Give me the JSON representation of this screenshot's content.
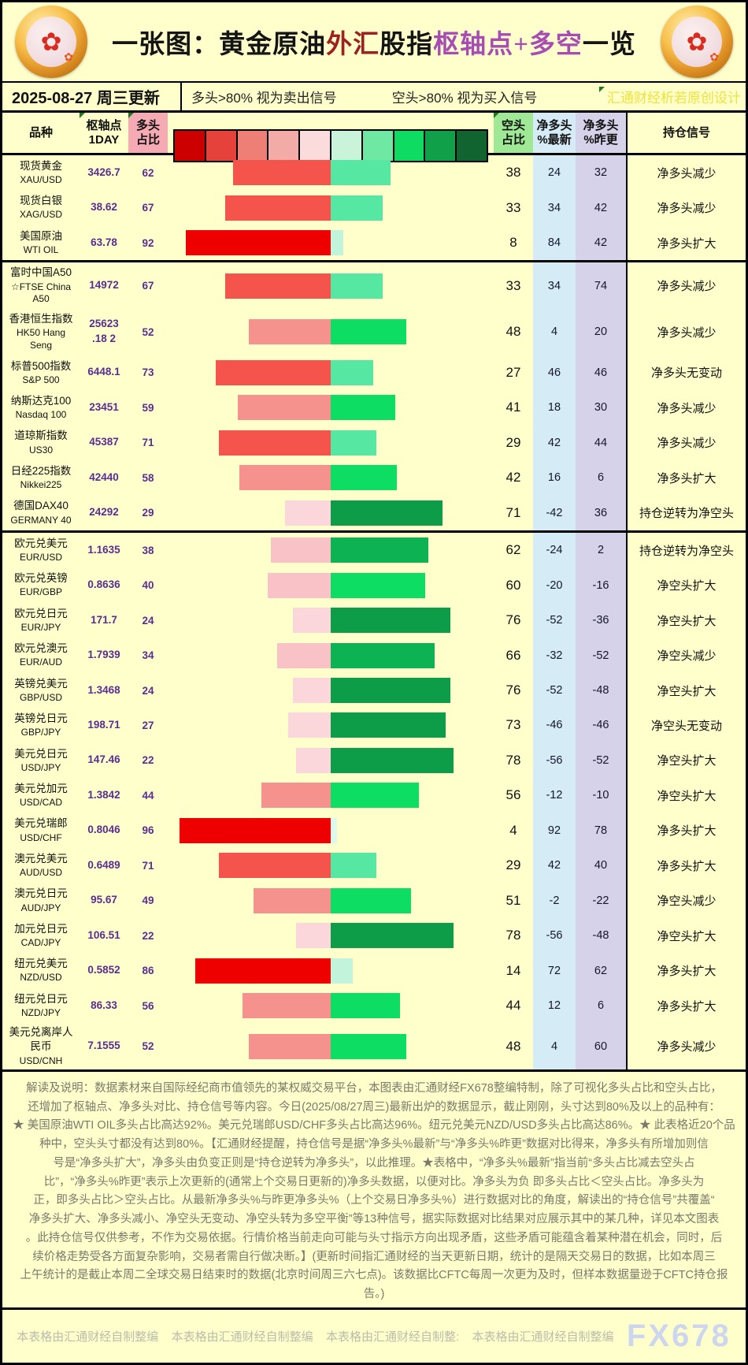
{
  "title": {
    "segments": [
      {
        "text": "一张图：黄金原油",
        "color": "#141414"
      },
      {
        "text": "外汇",
        "color": "#9e2121"
      },
      {
        "text": "股指",
        "color": "#141414"
      },
      {
        "text": "枢轴点+多空",
        "color": "#a64cb3"
      },
      {
        "text": "一览",
        "color": "#141414"
      }
    ]
  },
  "subheader": {
    "date": "2025-08-27 周三更新",
    "legend_long": "多头>80% 视为卖出信号",
    "legend_short": "空头>80% 视为买入信号",
    "watermark": "汇通财经析若原创设计"
  },
  "table": {
    "headers": {
      "symbol": "品种",
      "pivot": "枢轴点\n1DAY",
      "long": "多头\n占比",
      "short": "空头\n占比",
      "net_new": "净多头\n%最新",
      "net_prev": "净多头\n%昨更",
      "signal": "持仓信号"
    },
    "scale_colors": [
      "#cc0000",
      "#e4423a",
      "#ee7f77",
      "#f2aba6",
      "#fbdbdb",
      "#c9f4d9",
      "#6fe8a4",
      "#0edb62",
      "#10a04a",
      "#11632f"
    ],
    "red_levels": [
      [
        85,
        "#ee0000"
      ],
      [
        60,
        "#f4544c"
      ],
      [
        42,
        "#f5928e"
      ],
      [
        30,
        "#f8c2c6"
      ],
      [
        0,
        "#fbd6da"
      ]
    ],
    "green_levels": [
      [
        70,
        "#0d9d48"
      ],
      [
        61,
        "#0db353"
      ],
      [
        40,
        "#0edd63"
      ],
      [
        25,
        "#56e8a2"
      ],
      [
        6,
        "#c2f4dc"
      ],
      [
        0,
        "#dff8ec"
      ]
    ],
    "rows": [
      {
        "name": "现货黄金",
        "code": "XAU/USD",
        "pivot": "3426.7",
        "long": 62,
        "short": 38,
        "net_new": 24,
        "net_prev": 32,
        "signal": "净多头减少"
      },
      {
        "name": "现货白银",
        "code": "XAG/USD",
        "pivot": "38.62",
        "long": 67,
        "short": 33,
        "net_new": 34,
        "net_prev": 42,
        "signal": "净多头减少"
      },
      {
        "name": "美国原油",
        "code": "WTI OIL",
        "pivot": "63.78",
        "long": 92,
        "short": 8,
        "net_new": 84,
        "net_prev": 42,
        "signal": "净多头扩大"
      },
      {
        "name": "富时中国A50",
        "code": "☆FTSE China\nA50",
        "pivot": "14972",
        "long": 67,
        "short": 33,
        "net_new": 34,
        "net_prev": 74,
        "signal": "净多头减少",
        "group_start": true,
        "tall": true
      },
      {
        "name": "香港恒生指数",
        "code": "HK50 Hang\nSeng",
        "pivot": "25623\n.18 2",
        "long": 52,
        "short": 48,
        "net_new": 4,
        "net_prev": 20,
        "signal": "净多头减少",
        "tall": true
      },
      {
        "name": "标普500指数",
        "code": "S&P 500",
        "pivot": "6448.1",
        "long": 73,
        "short": 27,
        "net_new": 46,
        "net_prev": 46,
        "signal": "净多头无变动"
      },
      {
        "name": "纳斯达克100",
        "code": "Nasdaq 100",
        "pivot": "23451",
        "long": 59,
        "short": 41,
        "net_new": 18,
        "net_prev": 30,
        "signal": "净多头减少"
      },
      {
        "name": "道琼斯指数",
        "code": "US30",
        "pivot": "45387",
        "long": 71,
        "short": 29,
        "net_new": 42,
        "net_prev": 44,
        "signal": "净多头减少"
      },
      {
        "name": "日经225指数",
        "code": "Nikkei225",
        "pivot": "42440",
        "long": 58,
        "short": 42,
        "net_new": 16,
        "net_prev": 6,
        "signal": "净多头扩大"
      },
      {
        "name": "德国DAX40",
        "code": "GERMANY 40",
        "pivot": "24292",
        "long": 29,
        "short": 71,
        "net_new": -42,
        "net_prev": 36,
        "signal": "持仓逆转为净空头"
      },
      {
        "name": "欧元兑美元",
        "code": "EUR/USD",
        "pivot": "1.1635",
        "long": 38,
        "short": 62,
        "net_new": -24,
        "net_prev": 2,
        "signal": "持仓逆转为净空头",
        "group_start": true
      },
      {
        "name": "欧元兑英镑",
        "code": "EUR/GBP",
        "pivot": "0.8636",
        "long": 40,
        "short": 60,
        "net_new": -20,
        "net_prev": -16,
        "signal": "净空头扩大"
      },
      {
        "name": "欧元兑日元",
        "code": "EUR/JPY",
        "pivot": "171.7",
        "long": 24,
        "short": 76,
        "net_new": -52,
        "net_prev": -36,
        "signal": "净空头扩大"
      },
      {
        "name": "欧元兑澳元",
        "code": "EUR/AUD",
        "pivot": "1.7939",
        "long": 34,
        "short": 66,
        "net_new": -32,
        "net_prev": -52,
        "signal": "净空头减少"
      },
      {
        "name": "英镑兑美元",
        "code": "GBP/USD",
        "pivot": "1.3468",
        "long": 24,
        "short": 76,
        "net_new": -52,
        "net_prev": -48,
        "signal": "净空头扩大"
      },
      {
        "name": "英镑兑日元",
        "code": "GBP/JPY",
        "pivot": "198.71",
        "long": 27,
        "short": 73,
        "net_new": -46,
        "net_prev": -46,
        "signal": "净空头无变动"
      },
      {
        "name": "美元兑日元",
        "code": "USD/JPY",
        "pivot": "147.46",
        "long": 22,
        "short": 78,
        "net_new": -56,
        "net_prev": -52,
        "signal": "净空头扩大"
      },
      {
        "name": "美元兑加元",
        "code": "USD/CAD",
        "pivot": "1.3842",
        "long": 44,
        "short": 56,
        "net_new": -12,
        "net_prev": -10,
        "signal": "净空头扩大"
      },
      {
        "name": "美元兑瑞郎",
        "code": "USD/CHF",
        "pivot": "0.8046",
        "long": 96,
        "short": 4,
        "net_new": 92,
        "net_prev": 78,
        "signal": "净多头扩大"
      },
      {
        "name": "澳元兑美元",
        "code": "AUD/USD",
        "pivot": "0.6489",
        "long": 71,
        "short": 29,
        "net_new": 42,
        "net_prev": 40,
        "signal": "净多头扩大"
      },
      {
        "name": "澳元兑日元",
        "code": "AUD/JPY",
        "pivot": "95.67",
        "long": 49,
        "short": 51,
        "net_new": -2,
        "net_prev": -22,
        "signal": "净空头减少"
      },
      {
        "name": "加元兑日元",
        "code": "CAD/JPY",
        "pivot": "106.51",
        "long": 22,
        "short": 78,
        "net_new": -56,
        "net_prev": -48,
        "signal": "净空头扩大"
      },
      {
        "name": "纽元兑美元",
        "code": "NZD/USD",
        "pivot": "0.5852",
        "long": 86,
        "short": 14,
        "net_new": 72,
        "net_prev": 62,
        "signal": "净多头扩大"
      },
      {
        "name": "纽元兑日元",
        "code": "NZD/JPY",
        "pivot": "86.33",
        "long": 56,
        "short": 44,
        "net_new": 12,
        "net_prev": 6,
        "signal": "净多头扩大"
      },
      {
        "name": "美元兑离岸人\n民币",
        "code": "USD/CNH",
        "pivot": "7.1555",
        "long": 52,
        "short": 48,
        "net_new": 4,
        "net_prev": 60,
        "signal": "净多头减少",
        "tall": true
      }
    ]
  },
  "chart_data": {
    "type": "bar",
    "title": "一张图：黄金原油外汇股指枢轴点+多空一览",
    "subtitle": "2025-08-27 周三更新",
    "categories": [
      "XAU/USD",
      "XAG/USD",
      "WTI OIL",
      "FTSE China A50",
      "HK50 Hang Seng",
      "S&P 500",
      "Nasdaq 100",
      "US30",
      "Nikkei225",
      "GERMANY 40",
      "EUR/USD",
      "EUR/GBP",
      "EUR/JPY",
      "EUR/AUD",
      "GBP/USD",
      "GBP/JPY",
      "USD/JPY",
      "USD/CAD",
      "USD/CHF",
      "AUD/USD",
      "AUD/JPY",
      "CAD/JPY",
      "NZD/USD",
      "NZD/JPY",
      "USD/CNH"
    ],
    "series": [
      {
        "name": "多头占比",
        "values": [
          62,
          67,
          92,
          67,
          52,
          73,
          59,
          71,
          58,
          29,
          38,
          40,
          24,
          34,
          24,
          27,
          22,
          44,
          96,
          71,
          49,
          22,
          86,
          56,
          52
        ]
      },
      {
        "name": "空头占比",
        "values": [
          38,
          33,
          8,
          33,
          48,
          27,
          41,
          29,
          42,
          71,
          62,
          60,
          76,
          66,
          76,
          73,
          78,
          56,
          4,
          29,
          51,
          78,
          14,
          44,
          48
        ]
      },
      {
        "name": "净多头%最新",
        "values": [
          24,
          34,
          84,
          34,
          4,
          46,
          18,
          42,
          16,
          -42,
          -24,
          -20,
          -52,
          -32,
          -52,
          -46,
          -56,
          -12,
          92,
          42,
          -2,
          -56,
          72,
          12,
          4
        ]
      },
      {
        "name": "净多头%昨更",
        "values": [
          32,
          42,
          42,
          74,
          20,
          46,
          30,
          44,
          6,
          36,
          2,
          -16,
          -36,
          -52,
          -48,
          -46,
          -52,
          -10,
          78,
          40,
          -22,
          -48,
          62,
          6,
          60
        ]
      },
      {
        "name": "枢轴点1DAY",
        "values": [
          3426.7,
          38.62,
          63.78,
          14972,
          25623.182,
          6448.1,
          23451,
          45387,
          42440,
          24292,
          1.1635,
          0.8636,
          171.7,
          1.7939,
          1.3468,
          198.71,
          147.46,
          1.3842,
          0.8046,
          0.6489,
          95.67,
          106.51,
          0.5852,
          86.33,
          7.1555
        ]
      },
      {
        "name": "持仓信号",
        "values": [
          "净多头减少",
          "净多头减少",
          "净多头扩大",
          "净多头减少",
          "净多头减少",
          "净多头无变动",
          "净多头减少",
          "净多头减少",
          "净多头扩大",
          "持仓逆转为净空头",
          "持仓逆转为净空头",
          "净空头扩大",
          "净空头扩大",
          "净空头减少",
          "净空头扩大",
          "净空头无变动",
          "净空头扩大",
          "净空头扩大",
          "净多头扩大",
          "净多头扩大",
          "净空头减少",
          "净空头扩大",
          "净多头扩大",
          "净多头扩大",
          "净多头减少"
        ]
      }
    ],
    "xlim": [
      0,
      100
    ],
    "grid": false,
    "legend_position": "none"
  },
  "footer": {
    "lines": [
      "解读及说明：数据素材来自国际经纪商市值领先的某权威交易平台，本图表由汇通财经FX678整编特制，除了可视化多头占比和空头占比，",
      "还增加了枢轴点、净多头对比、持仓信号等内容。今日(2025/08/27周三)最新出炉的数据显示，截止刚刚，头寸达到80%及以上的品种有：",
      "★ 美国原油WTI OIL多头占比高达92%。美元兑瑞郎USD/CHF多头占比高达96%。纽元兑美元NZD/USD多头占比高达86%。★ 此表格近20个品",
      "种中，空头头寸都没有达到80%。【汇通财经提醒，持仓信号是据“净多头%最新”与“净多头%昨更”数据对比得来，净多头有所增加则信",
      "号是“净多头扩大”，净多头由负变正则是“持仓逆转为净多头”，以此推理。★表格中，“净多头%最新”指当前“多头占比减去空头占",
      "比”，“净多头%昨更”表示上次更新的(通常上个交易日更新的)净多头数据，以便对比。净多头为负 即多头占比＜空头占比。净多头为",
      "正，即多头占比＞空头占比。从最新净多头%与昨更净多头%（上个交易日净多头%）进行数据对比的角度，解读出的“持仓信号”共覆盖“",
      "净多头扩大、净多头减小、净空头无变动、净空头转为多空平衡”等13种信号，据实际数据对比结果对应展示其中的某几种，详见本文图表",
      "。此持仓信号仅供参考，不作为交易依据。行情价格当前走向可能与头寸指示方向出现矛盾，这些矛盾可能蕴含着某种潜在机会，同时，后",
      "续价格走势受各方面复杂影响，交易者需自行做决断。】(更新时间指汇通财经的当天更新日期，统计的是隔天交易日的数据，比如本周三",
      "上午统计的是截止本周二全球交易日结束时的数据(北京时间周三六七点)。该数据比CFTC每周一次更为及时，但样本数据量逊于CFTC持仓报",
      "告。)"
    ]
  },
  "credits": {
    "items": [
      "本表格由汇通财经自制整编",
      "本表格由汇通财经自制整编",
      "本表格由汇通财经自制整:",
      "本表格由汇通财经自制整编"
    ],
    "watermark": "FX678"
  },
  "colors": {
    "background": "#ffffcc",
    "long_header_bg": "#f6aab4",
    "short_header_bg": "#9fe896",
    "net_new_bg": "#d5ebf5",
    "net_prev_bg": "#d6d2ea",
    "pivot_text": "#5b2d91",
    "watermark_yellow": "#efe13c"
  }
}
